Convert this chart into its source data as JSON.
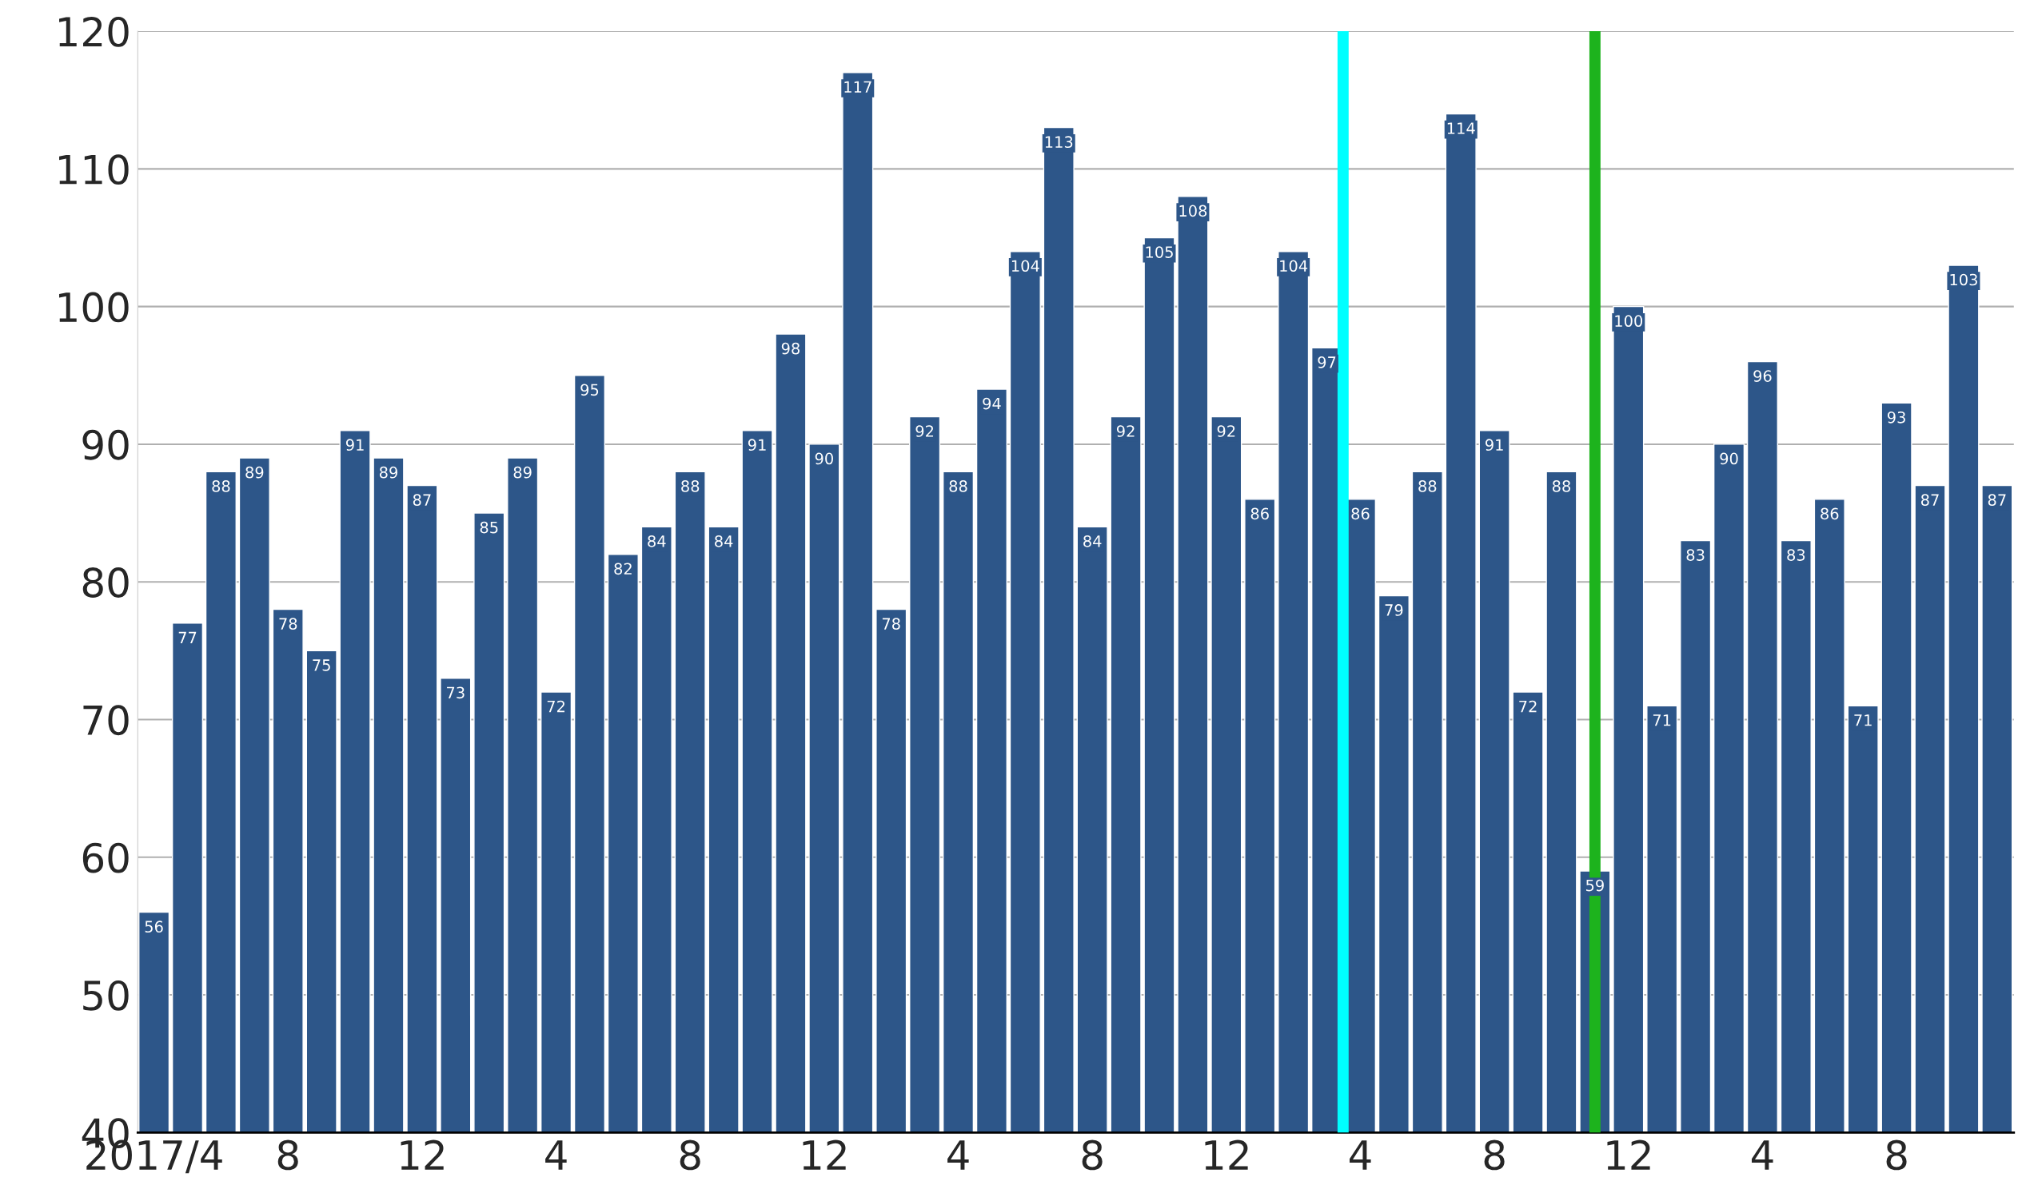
{
  "chart_data": {
    "type": "bar",
    "x": [
      "2017-04",
      "2017-05",
      "2017-06",
      "2017-07",
      "2017-08",
      "2017-09",
      "2017-10",
      "2017-11",
      "2017-12",
      "2018-01",
      "2018-02",
      "2018-03",
      "2018-04",
      "2018-05",
      "2018-06",
      "2018-07",
      "2018-08",
      "2018-09",
      "2018-10",
      "2018-11",
      "2018-12",
      "2019-01",
      "2019-02",
      "2019-03",
      "2019-04",
      "2019-05",
      "2019-06",
      "2019-07",
      "2019-08",
      "2019-09",
      "2019-10",
      "2019-11",
      "2019-12",
      "2020-01",
      "2020-02",
      "2020-03",
      "2020-04",
      "2020-05",
      "2020-06",
      "2020-07",
      "2020-08",
      "2020-09",
      "2020-10",
      "2020-11",
      "2020-12",
      "2021-01",
      "2021-02",
      "2021-03",
      "2021-04",
      "2021-05",
      "2021-06",
      "2021-07",
      "2021-08",
      "2021-09",
      "2021-10",
      "2021-11"
    ],
    "values": [
      56,
      77,
      88,
      89,
      78,
      75,
      91,
      89,
      87,
      73,
      85,
      89,
      72,
      95,
      82,
      84,
      88,
      84,
      91,
      98,
      90,
      117,
      78,
      92,
      88,
      94,
      104,
      113,
      84,
      92,
      105,
      108,
      92,
      86,
      104,
      97,
      86,
      79,
      88,
      114,
      91,
      72,
      88,
      59,
      100,
      71,
      83,
      90,
      96,
      83,
      86,
      71,
      93,
      87,
      103,
      87
    ],
    "color": "#2d5689",
    "data_labels": true,
    "xlim": [
      "2017-03-17",
      "2021-11-16"
    ],
    "xticks": [
      {
        "value": "2017-04",
        "label": "2017/4"
      },
      {
        "value": "2017-08",
        "label": "8"
      },
      {
        "value": "2017-12",
        "label": "12"
      },
      {
        "value": "2018-04",
        "label": "4"
      },
      {
        "value": "2018-08",
        "label": "8"
      },
      {
        "value": "2018-12",
        "label": "12"
      },
      {
        "value": "2019-04",
        "label": "4"
      },
      {
        "value": "2019-08",
        "label": "8"
      },
      {
        "value": "2019-12",
        "label": "12"
      },
      {
        "value": "2020-04",
        "label": "4"
      },
      {
        "value": "2020-08",
        "label": "8"
      },
      {
        "value": "2020-12",
        "label": "12"
      },
      {
        "value": "2021-04",
        "label": "4"
      },
      {
        "value": "2021-08",
        "label": "8"
      }
    ],
    "ylim": [
      40,
      120
    ],
    "yticks": [
      40,
      50,
      60,
      70,
      80,
      90,
      100,
      110,
      120
    ],
    "grid": "y",
    "ref_lines": [
      {
        "axis": "x",
        "value": "2020-03-16",
        "color": "#00ffff"
      },
      {
        "axis": "x",
        "value": "2020-11",
        "color": "#1db31d"
      }
    ]
  }
}
